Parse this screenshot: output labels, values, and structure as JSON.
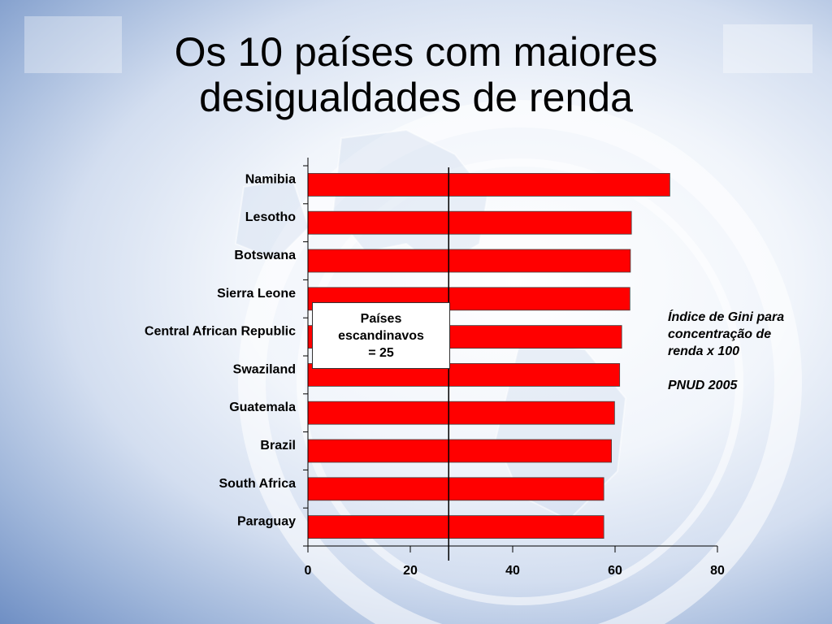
{
  "title_lines": [
    "Os 10 países com maiores",
    "desigualdades de renda"
  ],
  "chart_data": {
    "type": "bar",
    "orientation": "horizontal",
    "title": "Os 10 países com maiores desigualdades de renda",
    "categories": [
      "Namibia",
      "Lesotho",
      "Botswana",
      "Sierra Leone",
      "Central African Republic",
      "Swaziland",
      "Guatemala",
      "Brazil",
      "South Africa",
      "Paraguay"
    ],
    "values": [
      70.7,
      63.2,
      63.0,
      62.9,
      61.3,
      60.9,
      59.9,
      59.3,
      57.8,
      57.8
    ],
    "xlim": [
      0,
      80
    ],
    "xticks": [
      "0",
      "20",
      "40",
      "60",
      "80"
    ],
    "reference_line": 27.5,
    "bar_color": "#ff0000",
    "grid": false,
    "legend": "none"
  },
  "callout_lines": [
    "Países",
    "escandinavos",
    "= 25"
  ],
  "note": {
    "lines": [
      "Índice de Gini para",
      "concentração de",
      "renda x 100"
    ],
    "source": "PNUD 2005"
  }
}
